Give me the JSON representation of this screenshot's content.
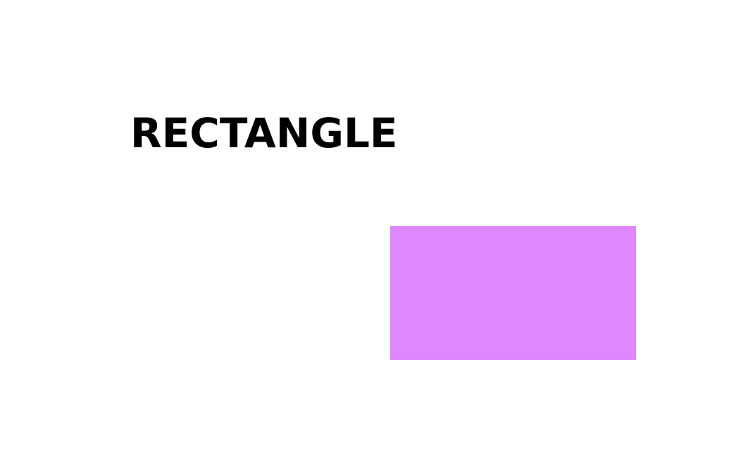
{
  "title": "RECTANGLE",
  "shape": {
    "kind": "rectangle",
    "fill": "#df88fd"
  },
  "colors": {
    "background": "#ffffff",
    "text": "#000000"
  }
}
